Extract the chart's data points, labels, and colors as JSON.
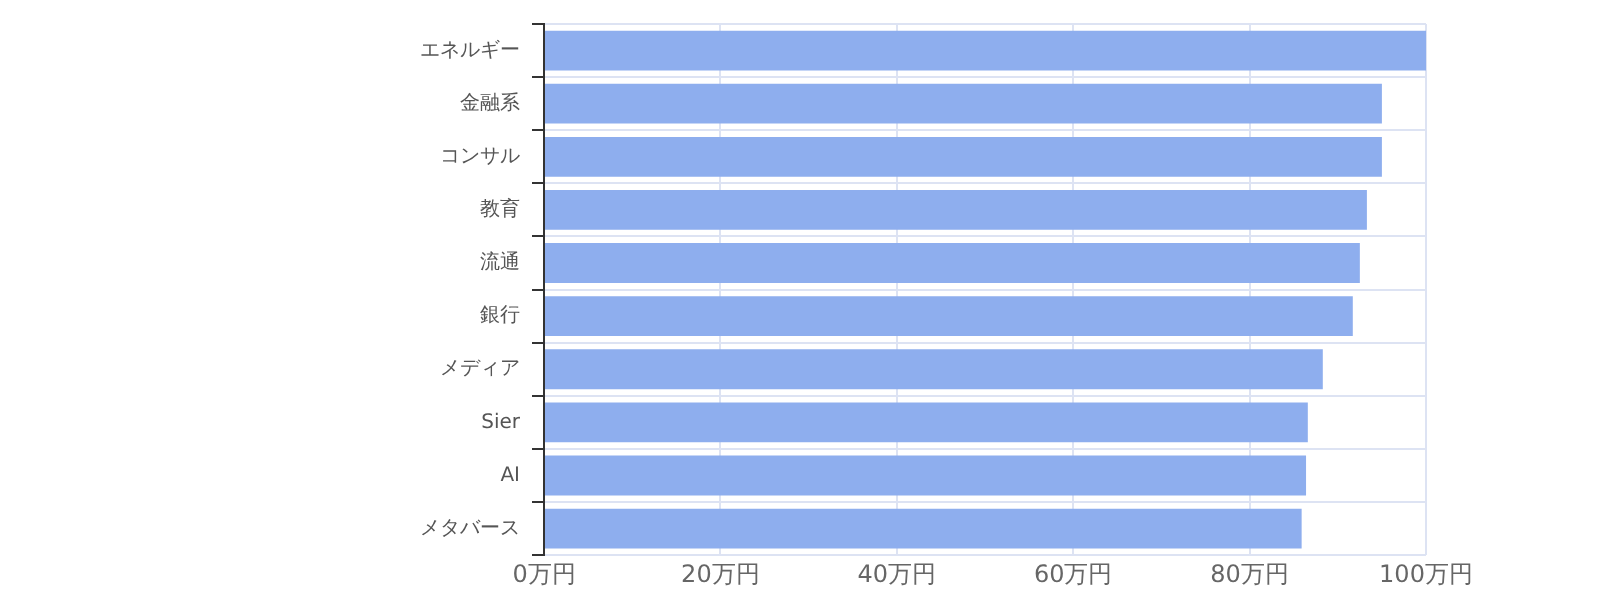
{
  "chart_data": {
    "type": "bar",
    "orientation": "horizontal",
    "categories": [
      "エネルギー",
      "金融系",
      "コンサル",
      "教育",
      "流通",
      "銀行",
      "メディア",
      "Sier",
      "AI",
      "メタバース"
    ],
    "values": [
      100,
      95,
      95,
      93.3,
      92.5,
      91.7,
      88.3,
      86.6,
      86.4,
      85.9
    ],
    "color": "#8eaeee",
    "xlim": [
      0,
      100
    ],
    "xticks": [
      {
        "value": 0,
        "label": "0万円"
      },
      {
        "value": 20,
        "label": "20万円"
      },
      {
        "value": 40,
        "label": "40万円"
      },
      {
        "value": 60,
        "label": "60万円"
      },
      {
        "value": 80,
        "label": "80万円"
      },
      {
        "value": 100,
        "label": "100万円"
      }
    ],
    "grid": true,
    "legend": false
  }
}
